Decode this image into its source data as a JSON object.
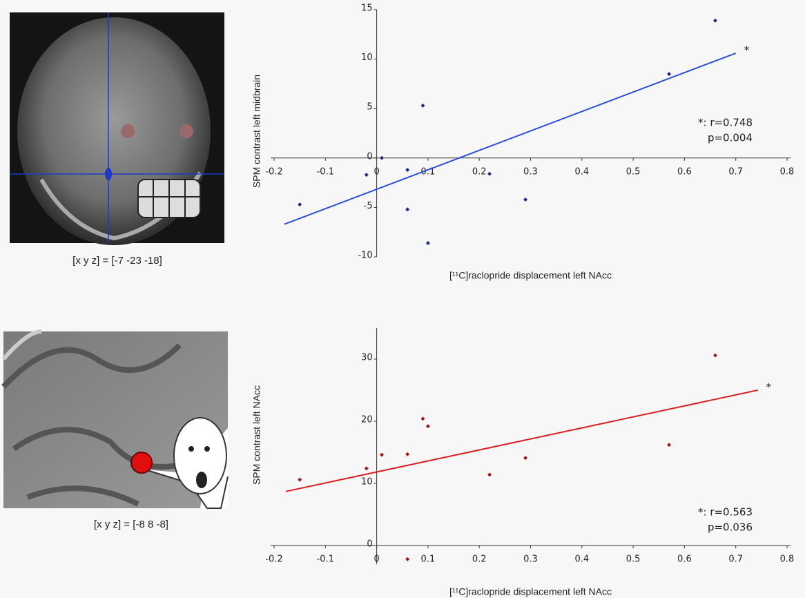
{
  "images": [
    {
      "caption": "[x y z] = [-7 -23 -18]"
    },
    {
      "caption": "[x y z] = [-8 8 -8]"
    }
  ],
  "chart_data": [
    {
      "type": "scatter",
      "ylabel": "SPM contrast left midbrain",
      "xlabel": "[¹¹C]raclopride displacement left NAcc",
      "x": [
        0.66,
        0.57,
        0.09,
        0.01,
        -0.02,
        0.06,
        0.22,
        0.06,
        -0.15,
        0.29,
        0.1
      ],
      "series": [
        {
          "color": "#1a2a8a",
          "values": [
            13.9,
            8.5,
            5.3,
            0,
            -1.7,
            -1.2,
            -1.6,
            -5.2,
            -4.7,
            -4.2,
            -8.6
          ]
        }
      ],
      "fit": {
        "color": "#2a4ee0",
        "x": [
          -0.18,
          0.7
        ],
        "values": [
          -6.7,
          10.6
        ]
      },
      "star": "*",
      "stats": [
        "*: r=0.748",
        "p=0.004"
      ],
      "xlim": [
        -0.2,
        0.8
      ],
      "xticks": [
        -0.2,
        -0.1,
        0,
        0.1,
        0.2,
        0.3,
        0.4,
        0.5,
        0.6,
        0.7,
        0.8
      ],
      "ylim": [
        -10,
        15
      ],
      "yticks": [
        -10,
        -5,
        0,
        5,
        10,
        15
      ]
    },
    {
      "type": "scatter",
      "ylabel": "SPM contrast left NAcc",
      "xlabel": "[¹¹C]raclopride displacement left NAcc",
      "x": [
        0.66,
        0.57,
        0.09,
        0.1,
        0.01,
        0.06,
        -0.02,
        -0.15,
        0.22,
        0.29,
        0.06
      ],
      "series": [
        {
          "color": "#a01818",
          "values": [
            30.6,
            16.2,
            20.4,
            19.2,
            14.6,
            14.7,
            12.4,
            10.6,
            11.4,
            14.1,
            -2.2
          ]
        }
      ],
      "fit": {
        "color": "#e02020",
        "x": [
          -0.177,
          0.743
        ],
        "values": [
          8.7,
          25.0
        ]
      },
      "star": "*",
      "stats": [
        "*: r=0.563",
        "p=0.036"
      ],
      "xlim": [
        -0.2,
        0.8
      ],
      "xticks": [
        -0.2,
        -0.1,
        0,
        0.1,
        0.2,
        0.3,
        0.4,
        0.5,
        0.6,
        0.7,
        0.8
      ],
      "ylim": [
        -3,
        35
      ],
      "yticks": [
        0,
        10,
        20,
        30
      ]
    }
  ]
}
